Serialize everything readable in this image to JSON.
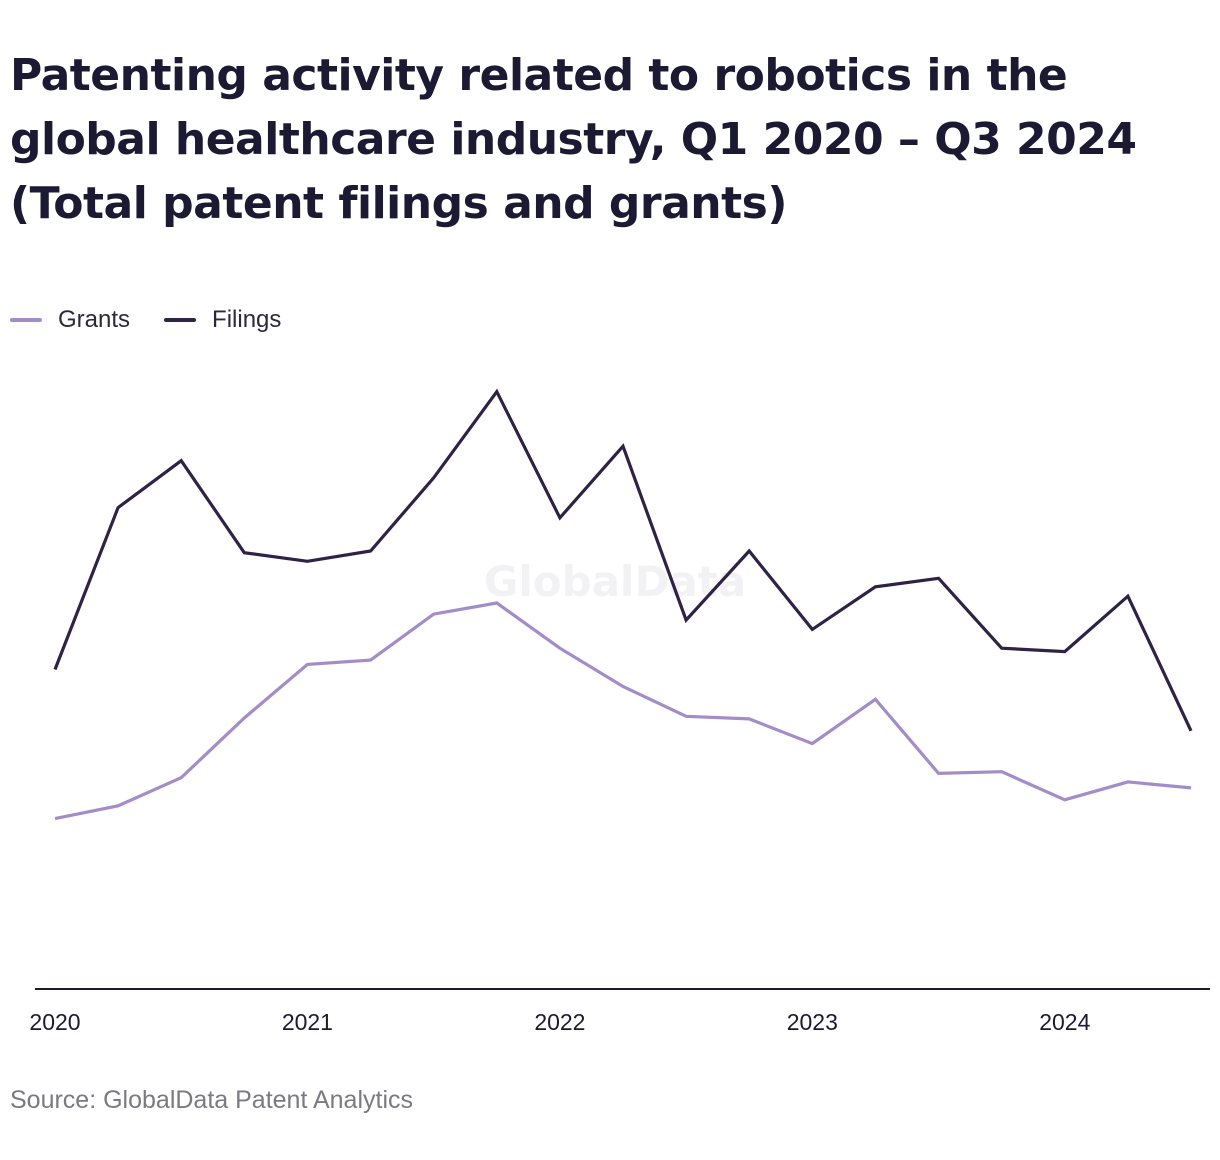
{
  "chart_data": {
    "type": "line",
    "title": "Patenting activity related to robotics in the global healthcare industry, Q1 2020 – Q3 2024 (Total patent filings and grants)",
    "x": [
      "Q1 2020",
      "Q2 2020",
      "Q3 2020",
      "Q4 2020",
      "Q1 2021",
      "Q2 2021",
      "Q3 2021",
      "Q4 2021",
      "Q1 2022",
      "Q2 2022",
      "Q3 2022",
      "Q4 2022",
      "Q1 2023",
      "Q2 2023",
      "Q3 2023",
      "Q4 2023",
      "Q1 2024",
      "Q2 2024",
      "Q3 2024"
    ],
    "x_tick_labels": [
      "2020",
      "2021",
      "2022",
      "2023",
      "2024"
    ],
    "x_tick_indices": [
      0,
      4,
      8,
      12,
      16
    ],
    "series": [
      {
        "name": "Grants",
        "color": "#a48cc8",
        "values": [
          100,
          115,
          148,
          218,
          281,
          286,
          340,
          353,
          300,
          255,
          220,
          217,
          188,
          240,
          153,
          155,
          122,
          143,
          136
        ]
      },
      {
        "name": "Filings",
        "color": "#2e2246",
        "values": [
          275,
          465,
          520,
          412,
          402,
          414,
          500,
          601,
          453,
          537,
          333,
          414,
          322,
          372,
          382,
          300,
          296,
          361,
          203
        ]
      }
    ],
    "ylim": [
      -100,
      603
    ],
    "grid": false,
    "legend_position": "top-left",
    "watermark": "GlobalData"
  },
  "source": "Source: GlobalData Patent Analytics"
}
